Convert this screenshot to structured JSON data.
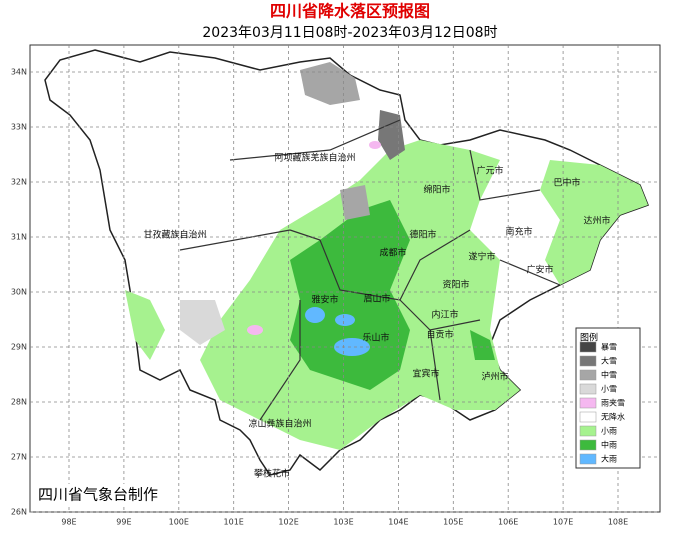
{
  "header": {
    "title": "四川省降水落区预报图",
    "subtitle": "2023年03月11日08时-2023年03月12日08时"
  },
  "map": {
    "lon_ticks": [
      {
        "value": 98,
        "label": "98E"
      },
      {
        "value": 99,
        "label": "99E"
      },
      {
        "value": 100,
        "label": "100E"
      },
      {
        "value": 101,
        "label": "101E"
      },
      {
        "value": 102,
        "label": "102E"
      },
      {
        "value": 103,
        "label": "103E"
      },
      {
        "value": 104,
        "label": "104E"
      },
      {
        "value": 105,
        "label": "105E"
      },
      {
        "value": 106,
        "label": "106E"
      },
      {
        "value": 107,
        "label": "107E"
      },
      {
        "value": 108,
        "label": "108E"
      }
    ],
    "lat_ticks": [
      {
        "value": 34,
        "label": "34N"
      },
      {
        "value": 33,
        "label": "33N"
      },
      {
        "value": 32,
        "label": "32N"
      },
      {
        "value": 31,
        "label": "31N"
      },
      {
        "value": 30,
        "label": "30N"
      },
      {
        "value": 29,
        "label": "29N"
      },
      {
        "value": 28,
        "label": "28N"
      },
      {
        "value": 27,
        "label": "27N"
      },
      {
        "value": 26,
        "label": "26N"
      }
    ],
    "cities": [
      "阿坝藏族羌族自治州",
      "甘孜藏族自治州",
      "凉山彝族自治州",
      "绵阳市",
      "广元市",
      "巴中市",
      "达州市",
      "南充市",
      "德阳市",
      "成都市",
      "遂宁市",
      "广安市",
      "雅安市",
      "眉山市",
      "资阳市",
      "内江市",
      "乐山市",
      "自贡市",
      "宜宾市",
      "泸州市",
      "攀枝花市"
    ]
  },
  "legend": {
    "title": "图例",
    "items": [
      {
        "label": "暴雪",
        "color": "#454545"
      },
      {
        "label": "大雪",
        "color": "#777777"
      },
      {
        "label": "中雪",
        "color": "#a6a6a6"
      },
      {
        "label": "小雪",
        "color": "#d9d9d9"
      },
      {
        "label": "雨夹雪",
        "color": "#f5b8f0"
      },
      {
        "label": "无降水",
        "color": "#ffffff"
      },
      {
        "label": "小雨",
        "color": "#a6f28f"
      },
      {
        "label": "中雨",
        "color": "#3dba3d"
      },
      {
        "label": "大雨",
        "color": "#61b8ff"
      }
    ]
  },
  "footer": "四川省气象台制作"
}
